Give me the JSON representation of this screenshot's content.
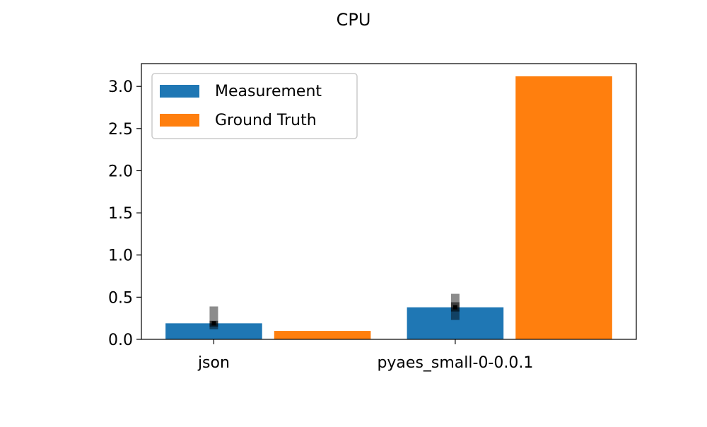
{
  "chart_data": {
    "type": "bar",
    "title": "CPU",
    "xlabel": "",
    "ylabel": "",
    "categories": [
      "json",
      "pyaes_small-0-0.0.1"
    ],
    "series": [
      {
        "name": "Measurement",
        "color": "#1f77b4",
        "values": [
          0.19,
          0.38
        ],
        "error_bars": [
          {
            "p25": 0.15,
            "median": 0.19,
            "p75": 0.22,
            "min": 0.12,
            "max": 0.39
          },
          {
            "p25": 0.33,
            "median": 0.38,
            "p75": 0.44,
            "min": 0.23,
            "max": 0.54
          }
        ]
      },
      {
        "name": "Ground Truth",
        "color": "#ff7f0e",
        "values": [
          0.1,
          3.12
        ]
      }
    ],
    "ylim": [
      0,
      3.27
    ],
    "yticks": [
      "0.0",
      "0.5",
      "1.0",
      "1.5",
      "2.0",
      "2.5",
      "3.0"
    ],
    "ytick_values": [
      0,
      0.5,
      1.0,
      1.5,
      2.0,
      2.5,
      3.0
    ],
    "legend_position": "top-left",
    "grid": false
  }
}
